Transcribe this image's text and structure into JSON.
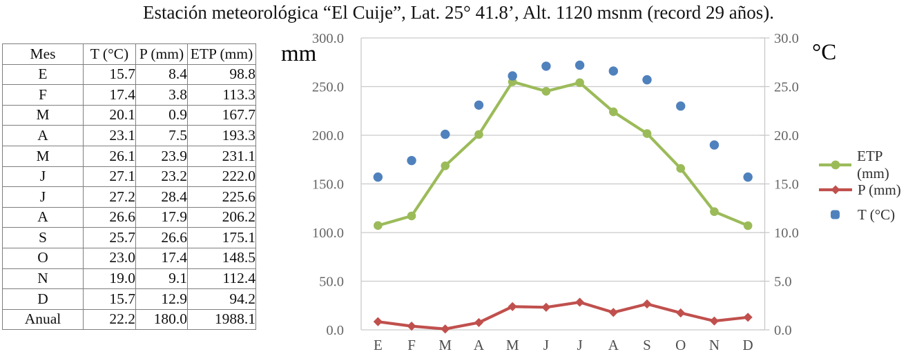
{
  "title": "Estación meteorológica “El Cuije”, Lat. 25° 41.8’, Alt. 1120 msnm (record 29 años).",
  "table": {
    "headers": [
      "Mes",
      "T (°C)",
      "P (mm)",
      "ETP (mm)"
    ],
    "rows": [
      [
        "E",
        "15.7",
        "8.4",
        "98.8"
      ],
      [
        "F",
        "17.4",
        "3.8",
        "113.3"
      ],
      [
        "M",
        "20.1",
        "0.9",
        "167.7"
      ],
      [
        "A",
        "23.1",
        "7.5",
        "193.3"
      ],
      [
        "M",
        "26.1",
        "23.9",
        "231.1"
      ],
      [
        "J",
        "27.1",
        "23.2",
        "222.0"
      ],
      [
        "J",
        "27.2",
        "28.4",
        "225.6"
      ],
      [
        "A",
        "26.6",
        "17.9",
        "206.2"
      ],
      [
        "S",
        "25.7",
        "26.6",
        "175.1"
      ],
      [
        "O",
        "23.0",
        "17.4",
        "148.5"
      ],
      [
        "N",
        "19.0",
        "9.1",
        "112.4"
      ],
      [
        "D",
        "15.7",
        "12.9",
        "94.2"
      ],
      [
        "Anual",
        "22.2",
        "180.0",
        "1988.1"
      ]
    ]
  },
  "chart_data": {
    "type": "line",
    "subtype": "stacked line with markers (ETP stacked on P, left axis); T plotted as points on right axis",
    "categories": [
      "E",
      "F",
      "M",
      "A",
      "M",
      "J",
      "J",
      "A",
      "S",
      "O",
      "N",
      "D"
    ],
    "series": [
      {
        "name": "ETP (mm)",
        "type": "line",
        "marker": "circle",
        "color": "#9BBB59",
        "axis": "left",
        "values": [
          98.8,
          113.3,
          167.7,
          193.3,
          231.1,
          222.0,
          225.6,
          206.2,
          175.1,
          148.5,
          112.4,
          94.2
        ],
        "stacked_on": "P (mm)",
        "plotted_values": [
          107.2,
          117.1,
          168.6,
          200.8,
          255.0,
          245.2,
          254.0,
          224.1,
          201.7,
          165.9,
          121.5,
          107.1
        ]
      },
      {
        "name": "P (mm)",
        "type": "line",
        "marker": "diamond",
        "color": "#C0504D",
        "axis": "left",
        "values": [
          8.4,
          3.8,
          0.9,
          7.5,
          23.9,
          23.2,
          28.4,
          17.9,
          26.6,
          17.4,
          9.1,
          12.9
        ]
      },
      {
        "name": "T (°C)",
        "type": "scatter",
        "marker": "circle",
        "color": "#4F81BD",
        "axis": "right",
        "values": [
          15.7,
          17.4,
          20.1,
          23.1,
          26.1,
          27.1,
          27.2,
          26.6,
          25.7,
          23.0,
          19.0,
          15.7
        ]
      }
    ],
    "left_axis": {
      "label": "mm",
      "min": 0,
      "max": 300,
      "step": 50,
      "tick_labels": [
        "0.0",
        "50.0",
        "100.0",
        "150.0",
        "200.0",
        "250.0",
        "300.0"
      ]
    },
    "right_axis": {
      "label": "°C",
      "min": 0,
      "max": 30,
      "step": 5,
      "tick_labels": [
        "0.0",
        "5.0",
        "10.0",
        "15.0",
        "20.0",
        "25.0",
        "30.0"
      ]
    },
    "grid": true,
    "legend_position": "right",
    "grid_color": "#C9C9C9",
    "axis_text_color": "#666666"
  }
}
